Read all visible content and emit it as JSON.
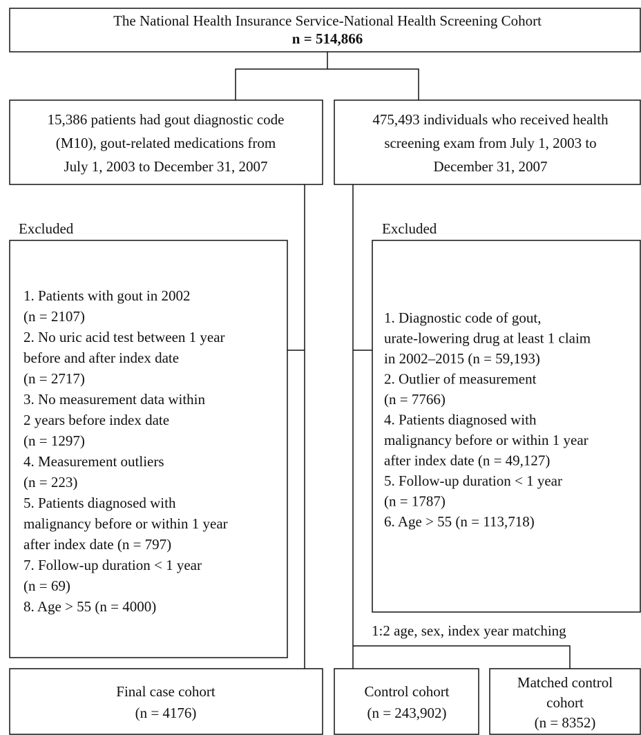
{
  "nodes": [
    {
      "lines": [
        "The National Health Insurance Service-National Health Screening Cohort",
        "n = 514,866"
      ]
    },
    {
      "lines": [
        "15,386 patients had gout diagnostic code",
        "(M10), gout-related medications from",
        "July 1, 2003 to December 31, 2007"
      ]
    },
    {
      "lines": [
        "475,493 individuals who received health",
        "screening exam from July 1, 2003 to",
        "December 31, 2007"
      ]
    },
    {
      "lines": [
        "1. Patients with gout in 2002",
        "(n = 2107)",
        "2. No uric acid test between 1 year",
        "before and after index date",
        "(n = 2717)",
        "3. No measurement data within",
        "2 years before index date",
        "(n = 1297)",
        "4. Measurement outliers",
        "(n = 223)",
        "5. Patients diagnosed with",
        "malignancy before or within 1 year",
        "after index date (n = 797)",
        "7. Follow-up duration < 1 year",
        "(n = 69)",
        "8. Age > 55 (n = 4000)"
      ]
    },
    {
      "lines": [
        "1. Diagnostic code of gout,",
        "urate-lowering drug at least 1 claim",
        "in 2002–2015 (n = 59,193)",
        "2. Outlier of measurement",
        "(n = 7766)",
        "4. Patients diagnosed with",
        "malignancy before or within 1 year",
        "after index date (n = 49,127)",
        "5. Follow-up duration < 1 year",
        "(n = 1787)",
        "6. Age > 55 (n = 113,718)"
      ]
    },
    {
      "lines": [
        "Final case cohort",
        "(n = 4176)"
      ]
    },
    {
      "lines": [
        "Control cohort",
        "(n = 243,902)"
      ]
    },
    {
      "lines": [
        "Matched control",
        "cohort",
        "(n = 8352)"
      ]
    }
  ],
  "labels": [
    "Excluded",
    "Excluded",
    "1:2 age, sex, index year matching"
  ]
}
